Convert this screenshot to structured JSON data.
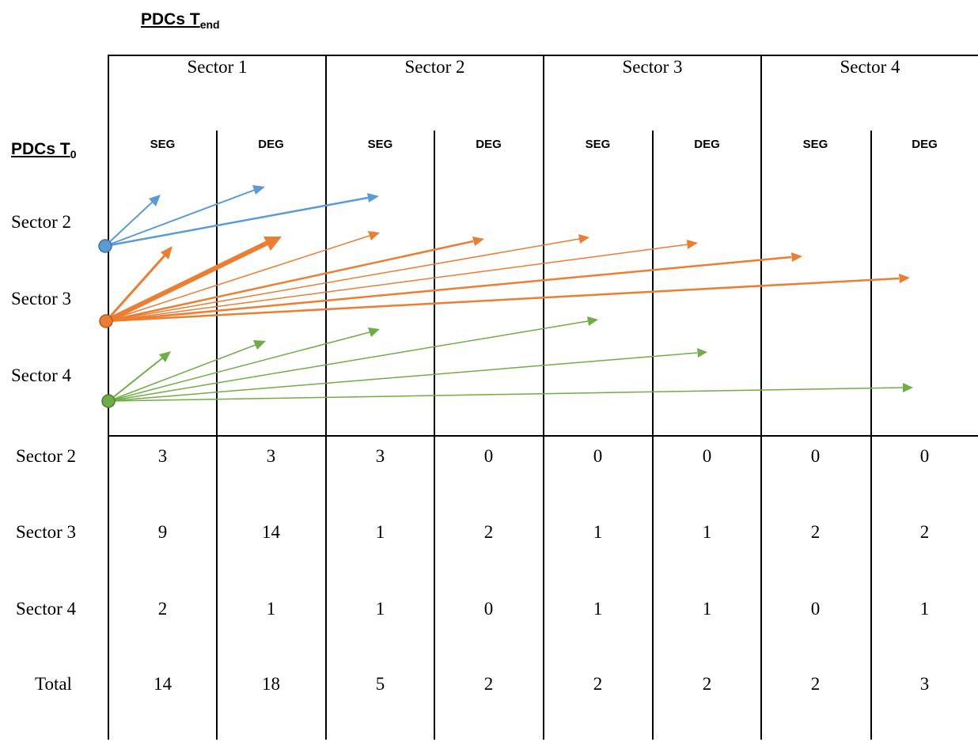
{
  "title_end": {
    "main": "PDCs T",
    "sub": "end"
  },
  "title_start": {
    "main": "PDCs T",
    "sub": "0"
  },
  "sectors": [
    "Sector 1",
    "Sector 2",
    "Sector 3",
    "Sector 4"
  ],
  "subcolumns": [
    "SEG",
    "DEG",
    "SEG",
    "DEG",
    "SEG",
    "DEG",
    "SEG",
    "DEG"
  ],
  "origin_rows": [
    "Sector 2",
    "Sector 3",
    "Sector 4"
  ],
  "colors": {
    "sector2": "#5b9bd5",
    "sector3": "#ed7d31",
    "sector4": "#70ad47"
  },
  "table": {
    "rows": [
      {
        "label": "Sector 2",
        "values": [
          "3",
          "3",
          "3",
          "0",
          "0",
          "0",
          "0",
          "0"
        ]
      },
      {
        "label": "Sector 3",
        "values": [
          "9",
          "14",
          "1",
          "2",
          "1",
          "1",
          "2",
          "2"
        ]
      },
      {
        "label": "Sector 4",
        "values": [
          "2",
          "1",
          "1",
          "0",
          "1",
          "1",
          "0",
          "1"
        ]
      },
      {
        "label": "Total",
        "values": [
          "14",
          "18",
          "5",
          "2",
          "2",
          "2",
          "2",
          "3"
        ]
      }
    ]
  }
}
